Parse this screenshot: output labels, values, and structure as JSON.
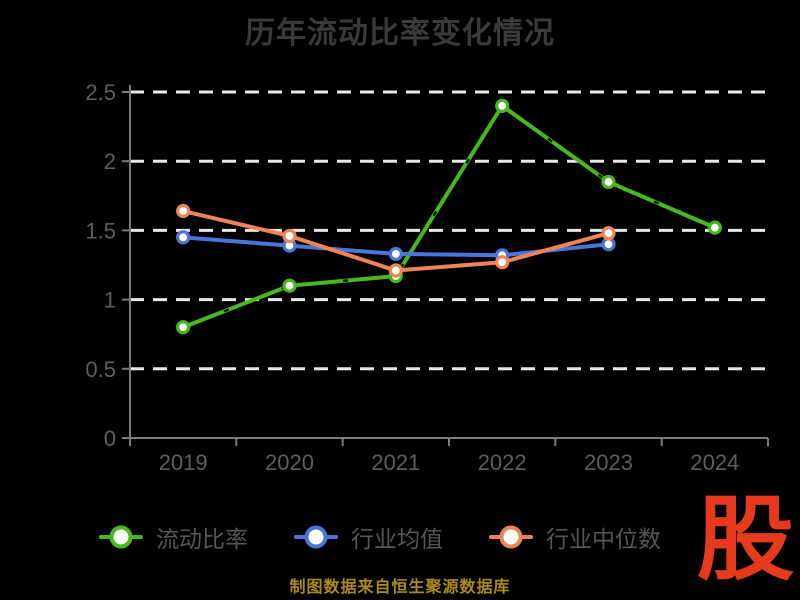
{
  "header": {
    "title": "历年流动比率变化情况"
  },
  "chart_data": {
    "type": "line",
    "title": "历年流动比率变化情况",
    "categories": [
      "2019",
      "2020",
      "2021",
      "2022",
      "2023",
      "2024"
    ],
    "series": [
      {
        "name": "流动比率",
        "color": "#47b91c",
        "style": "sketchy",
        "values": [
          0.8,
          1.1,
          1.17,
          2.4,
          1.85,
          1.52
        ]
      },
      {
        "name": "行业均值",
        "color": "#4a75d8",
        "style": "solid",
        "values": [
          1.45,
          1.39,
          1.33,
          1.32,
          1.4,
          null
        ]
      },
      {
        "name": "行业中位数",
        "color": "#ef8457",
        "style": "solid",
        "values": [
          1.64,
          1.46,
          1.21,
          1.27,
          1.48,
          null
        ]
      }
    ],
    "xlabel": "",
    "ylabel": "",
    "ylim": [
      0,
      2.5
    ],
    "ytick_step": 0.5,
    "ytick_labels": [
      "0",
      "0.5",
      "1",
      "1.5",
      "2",
      "2.5"
    ],
    "grid": "horizontal-dashed",
    "legend_position": "bottom",
    "marker_fill": "#ffffff",
    "colors": {
      "background": "#000000",
      "title": "#3a3a3a",
      "axis_line": "#7a7a7a",
      "grid_line": "#e8e8e8",
      "tick_label": "#5e5e5e",
      "legend_text": "#555555"
    }
  },
  "footer": {
    "note": "制图数据来自恒生聚源数据库",
    "color": "#ab8a1c"
  },
  "branding": {
    "logo_text": "股",
    "color": "#e6391e"
  }
}
